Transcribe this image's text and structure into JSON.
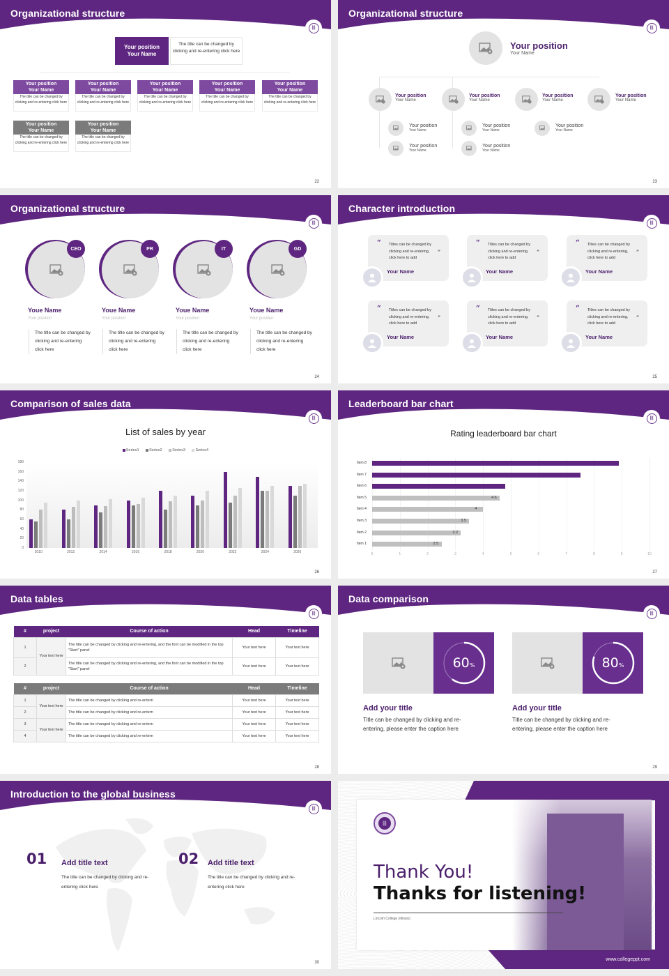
{
  "colors": {
    "brand_purple": "#5e2680",
    "accent_purple": "#7e4aa0",
    "gray_header": "#7b7b7b",
    "light_gray": "#e4e3e4"
  },
  "slides": {
    "s22": {
      "title": "Organizational structure",
      "page": "22",
      "top": {
        "position": "Your position",
        "name": "Your Name",
        "desc": "The title can be changed by clicking and re-entering click here"
      },
      "row1": [
        {
          "position": "Your position",
          "name": "Your Name",
          "desc": "The title can be changed by clicking and re-entering click here"
        },
        {
          "position": "Your position",
          "name": "Your Name",
          "desc": "The title can be changed by clicking and re-entering click here"
        },
        {
          "position": "Your position",
          "name": "Your Name",
          "desc": "The title can be changed by clicking and re-entering click here"
        },
        {
          "position": "Your position",
          "name": "Your Name",
          "desc": "The title can be changed by clicking and re-entering click here"
        },
        {
          "position": "Your position",
          "name": "Your Name",
          "desc": "The title can be changed by clicking and re-entering click here"
        }
      ],
      "row2": [
        {
          "position": "Your position",
          "name": "Your Name",
          "desc": "The title can be changed by clicking and re-entering click here"
        },
        {
          "position": "Your position",
          "name": "Your Name",
          "desc": "The title can be changed by clicking and re-entering click here"
        }
      ]
    },
    "s23": {
      "title": "Organizational structure",
      "page": "23",
      "top": {
        "position": "Your position",
        "name": "Your Name"
      },
      "level1": [
        {
          "position": "Your position",
          "name": "Your Name"
        },
        {
          "position": "Your position",
          "name": "Your Name"
        },
        {
          "position": "Your position",
          "name": "Your Name"
        },
        {
          "position": "Your position",
          "name": "Your Name"
        }
      ],
      "level2": [
        {
          "position": "Your position",
          "name": "Your Name"
        },
        {
          "position": "Your position",
          "name": "Your Name"
        },
        {
          "position": "Your position",
          "name": "Your Name"
        },
        {
          "position": "Your position",
          "name": "Your Name"
        },
        {
          "position": "Your position",
          "name": "Your Name"
        }
      ]
    },
    "s24": {
      "title": "Organizational structure",
      "page": "24",
      "people": [
        {
          "badge": "CEO",
          "name": "Youe Name",
          "position": "Your position",
          "desc": "The title can be changed by clicking and re-entering click here"
        },
        {
          "badge": "PR",
          "name": "Youe Name",
          "position": "Your position",
          "desc": "The title can be changed by clicking and re-entering click here"
        },
        {
          "badge": "IT",
          "name": "Youe Name",
          "position": "Your position",
          "desc": "The title can be changed by clicking and re-entering click here"
        },
        {
          "badge": "GD",
          "name": "Youe Name",
          "position": "Your position",
          "desc": "The title can be changed by clicking and re-entering click here"
        }
      ]
    },
    "s25": {
      "title": "Character introduction",
      "page": "25",
      "cards": [
        {
          "text": "Titles can be changed by clicking and re-entering, click here to add",
          "name": "Your Name"
        },
        {
          "text": "Titles can be changed by clicking and re-entering, click here to add",
          "name": "Your Name"
        },
        {
          "text": "Titles can be changed by clicking and re-entering, click here to add",
          "name": "Your Name"
        },
        {
          "text": "Titles can be changed by clicking and re-entering, click here to add",
          "name": "Your Name"
        },
        {
          "text": "Titles can be changed by clicking and re-entering, click here to add",
          "name": "Your Name"
        },
        {
          "text": "Titles can be changed by clicking and re-entering, click here to add",
          "name": "Your Name"
        }
      ],
      "open_quote": "“",
      "close_quote": "”"
    },
    "s26": {
      "title": "Comparison of sales data",
      "page": "26"
    },
    "s27": {
      "title": "Leaderboard bar chart",
      "page": "27"
    },
    "s28": {
      "title": "Data tables",
      "page": "28",
      "headers": [
        "#",
        "project",
        "Course of action",
        "Head",
        "Timeline"
      ],
      "table1": {
        "project": "Your text here",
        "rows": [
          {
            "n": "1",
            "action": "The title can be changed by clicking and re-entering, and the font can be modified in the top \"Start\" panel",
            "head": "Your text here",
            "timeline": "Your text here"
          },
          {
            "n": "2",
            "action": "The title can be changed by clicking and re-entering, and the font can be modified in the top \"Start\" panel",
            "head": "Your text here",
            "timeline": "Your text here"
          }
        ]
      },
      "table2": {
        "project_a": "Your text here",
        "project_b": "Your text here",
        "rows": [
          {
            "n": "1",
            "action": "The title can be changed by clicking and re-entern",
            "head": "Your text here",
            "timeline": "Your text here"
          },
          {
            "n": "2",
            "action": "The title can be changed by clicking and re-entern",
            "head": "Your text here",
            "timeline": "Your text here"
          },
          {
            "n": "3",
            "action": "The title can be changed by clicking and re-entern",
            "head": "Your text here",
            "timeline": "Your text here"
          },
          {
            "n": "4",
            "action": "The title can be changed by clicking and re-entern",
            "head": "Your text here",
            "timeline": "Your text here"
          }
        ]
      }
    },
    "s29": {
      "title": "Data comparison",
      "page": "29",
      "items": [
        {
          "percent": "60",
          "unit": "%",
          "title": "Add your title",
          "desc": "Title can be changed by clicking and re-entering, please enter the caption here"
        },
        {
          "percent": "80",
          "unit": "%",
          "title": "Add your title",
          "desc": "Title can be changed by clicking and re-entering, please enter the caption here"
        }
      ]
    },
    "s30": {
      "title": "Introduction to the global business",
      "page": "30",
      "items": [
        {
          "num": "01",
          "title": "Add title text",
          "desc": "The title can be changed by clicking and re-entering click here"
        },
        {
          "num": "02",
          "title": "Add title text",
          "desc": "The title can be changed by clicking and re-entering click here"
        }
      ]
    },
    "s31": {
      "thank": "Thank You!",
      "thanks": "Thanks for listening!",
      "college": "Lincoln College (Illinois)",
      "url": "www.collegeppt.com"
    }
  },
  "chart_data": [
    {
      "type": "bar",
      "title": "List of sales by year",
      "categories": [
        "2010",
        "2012",
        "2014",
        "2016",
        "2018",
        "2020",
        "2022",
        "2024",
        "2026"
      ],
      "series": [
        {
          "name": "Series1",
          "color": "#5e2680",
          "values": [
            60,
            80,
            90,
            100,
            120,
            110,
            160,
            150,
            130
          ]
        },
        {
          "name": "Series2",
          "color": "#7b7b7b",
          "values": [
            55,
            60,
            75,
            90,
            80,
            90,
            95,
            120,
            110
          ]
        },
        {
          "name": "Series3",
          "color": "#bdbdbd",
          "values": [
            80,
            86,
            88,
            92,
            98,
            100,
            110,
            120,
            130
          ]
        },
        {
          "name": "Series4",
          "color": "#d9d9d9",
          "values": [
            95,
            99,
            102,
            105,
            110,
            120,
            126,
            130,
            135
          ]
        }
      ],
      "xlabel": "",
      "ylabel": "",
      "ylim": [
        0,
        180
      ],
      "yticks": [
        "180",
        "160",
        "140",
        "120",
        "100",
        "80",
        "60",
        "40",
        "20",
        "0"
      ],
      "legend_position": "top",
      "grid": false
    },
    {
      "type": "bar",
      "orientation": "horizontal",
      "title": "Rating leaderboard bar chart",
      "categories": [
        "Item 8",
        "Item 7",
        "Item 6",
        "Item 5",
        "Item 4",
        "Item 3",
        "Item 2",
        "Item 1"
      ],
      "values": [
        8.9,
        7.5,
        4.8,
        4.6,
        4,
        3.5,
        3.2,
        2.5
      ],
      "value_labels": [
        "",
        "",
        "",
        "4.6",
        "4",
        "3.5",
        "3.2",
        "2.5"
      ],
      "highlight_colors": [
        "#5e2680",
        "#5e2680",
        "#5e2680",
        "#bfbfbf",
        "#bfbfbf",
        "#bfbfbf",
        "#bfbfbf",
        "#bfbfbf"
      ],
      "xlim": [
        0,
        10
      ],
      "xticks": [
        "0",
        "1",
        "2",
        "3",
        "4",
        "5",
        "6",
        "7",
        "8",
        "9",
        "10"
      ],
      "grid": true
    }
  ]
}
